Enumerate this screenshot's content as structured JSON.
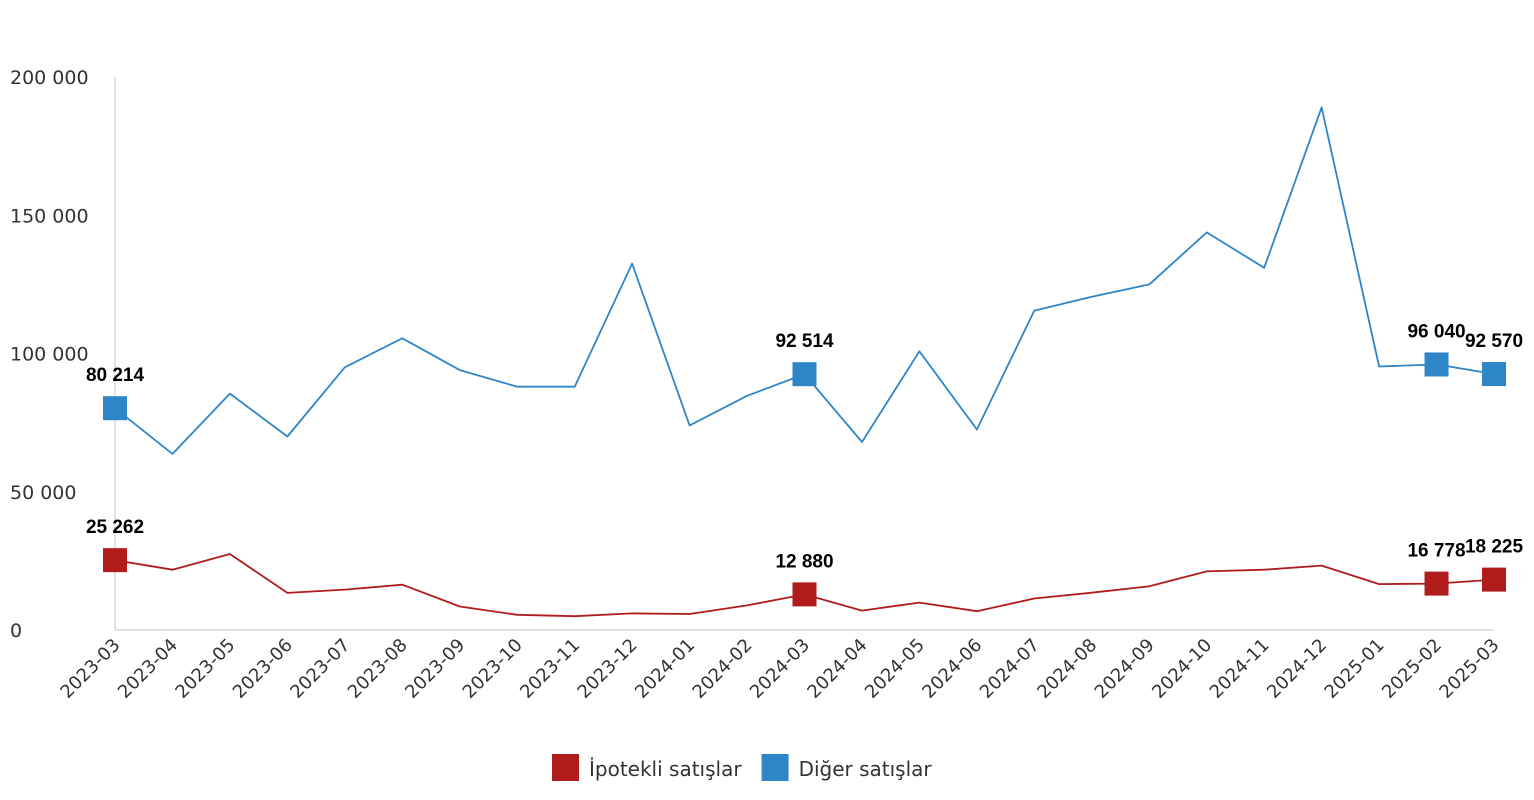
{
  "chart_data": {
    "type": "line",
    "title": "",
    "xlabel": "",
    "ylabel": "",
    "ylim": [
      0,
      200000
    ],
    "y_ticks": [
      0,
      50000,
      100000,
      150000,
      200000
    ],
    "y_tick_labels": [
      "0",
      "50 000",
      "100 000",
      "150 000",
      "200 000"
    ],
    "grid": false,
    "legend_position": "bottom-center",
    "categories": [
      "2023-03",
      "2023-04",
      "2023-05",
      "2023-06",
      "2023-07",
      "2023-08",
      "2023-09",
      "2023-10",
      "2023-11",
      "2023-12",
      "2024-01",
      "2024-02",
      "2024-03",
      "2024-04",
      "2024-05",
      "2024-06",
      "2024-07",
      "2024-08",
      "2024-09",
      "2024-10",
      "2024-11",
      "2024-12",
      "2025-01",
      "2025-02",
      "2025-03"
    ],
    "series": [
      {
        "name": "İpotekli satışlar",
        "color": "#b01c1c",
        "values": [
          25262,
          21800,
          27500,
          13400,
          14600,
          16400,
          8500,
          5500,
          5000,
          6000,
          5800,
          8900,
          12880,
          7000,
          9900,
          6800,
          11400,
          13500,
          15800,
          21200,
          21800,
          23300,
          16600,
          16778,
          18225
        ],
        "labeled_points": [
          {
            "index": 0,
            "label": "25 262"
          },
          {
            "index": 12,
            "label": "12 880"
          },
          {
            "index": 23,
            "label": "16 778"
          },
          {
            "index": 24,
            "label": "18 225"
          }
        ]
      },
      {
        "name": "Diğer satışlar",
        "color": "#2e86c8",
        "values": [
          80214,
          63700,
          85500,
          70000,
          95000,
          105500,
          94000,
          88000,
          88000,
          132500,
          74000,
          84700,
          92514,
          68000,
          100800,
          72500,
          115500,
          120500,
          125000,
          143800,
          131000,
          189000,
          95300,
          96040,
          92570
        ],
        "labeled_points": [
          {
            "index": 0,
            "label": "80 214"
          },
          {
            "index": 12,
            "label": "92 514"
          },
          {
            "index": 23,
            "label": "96 040"
          },
          {
            "index": 24,
            "label": "92 570"
          }
        ]
      }
    ]
  }
}
